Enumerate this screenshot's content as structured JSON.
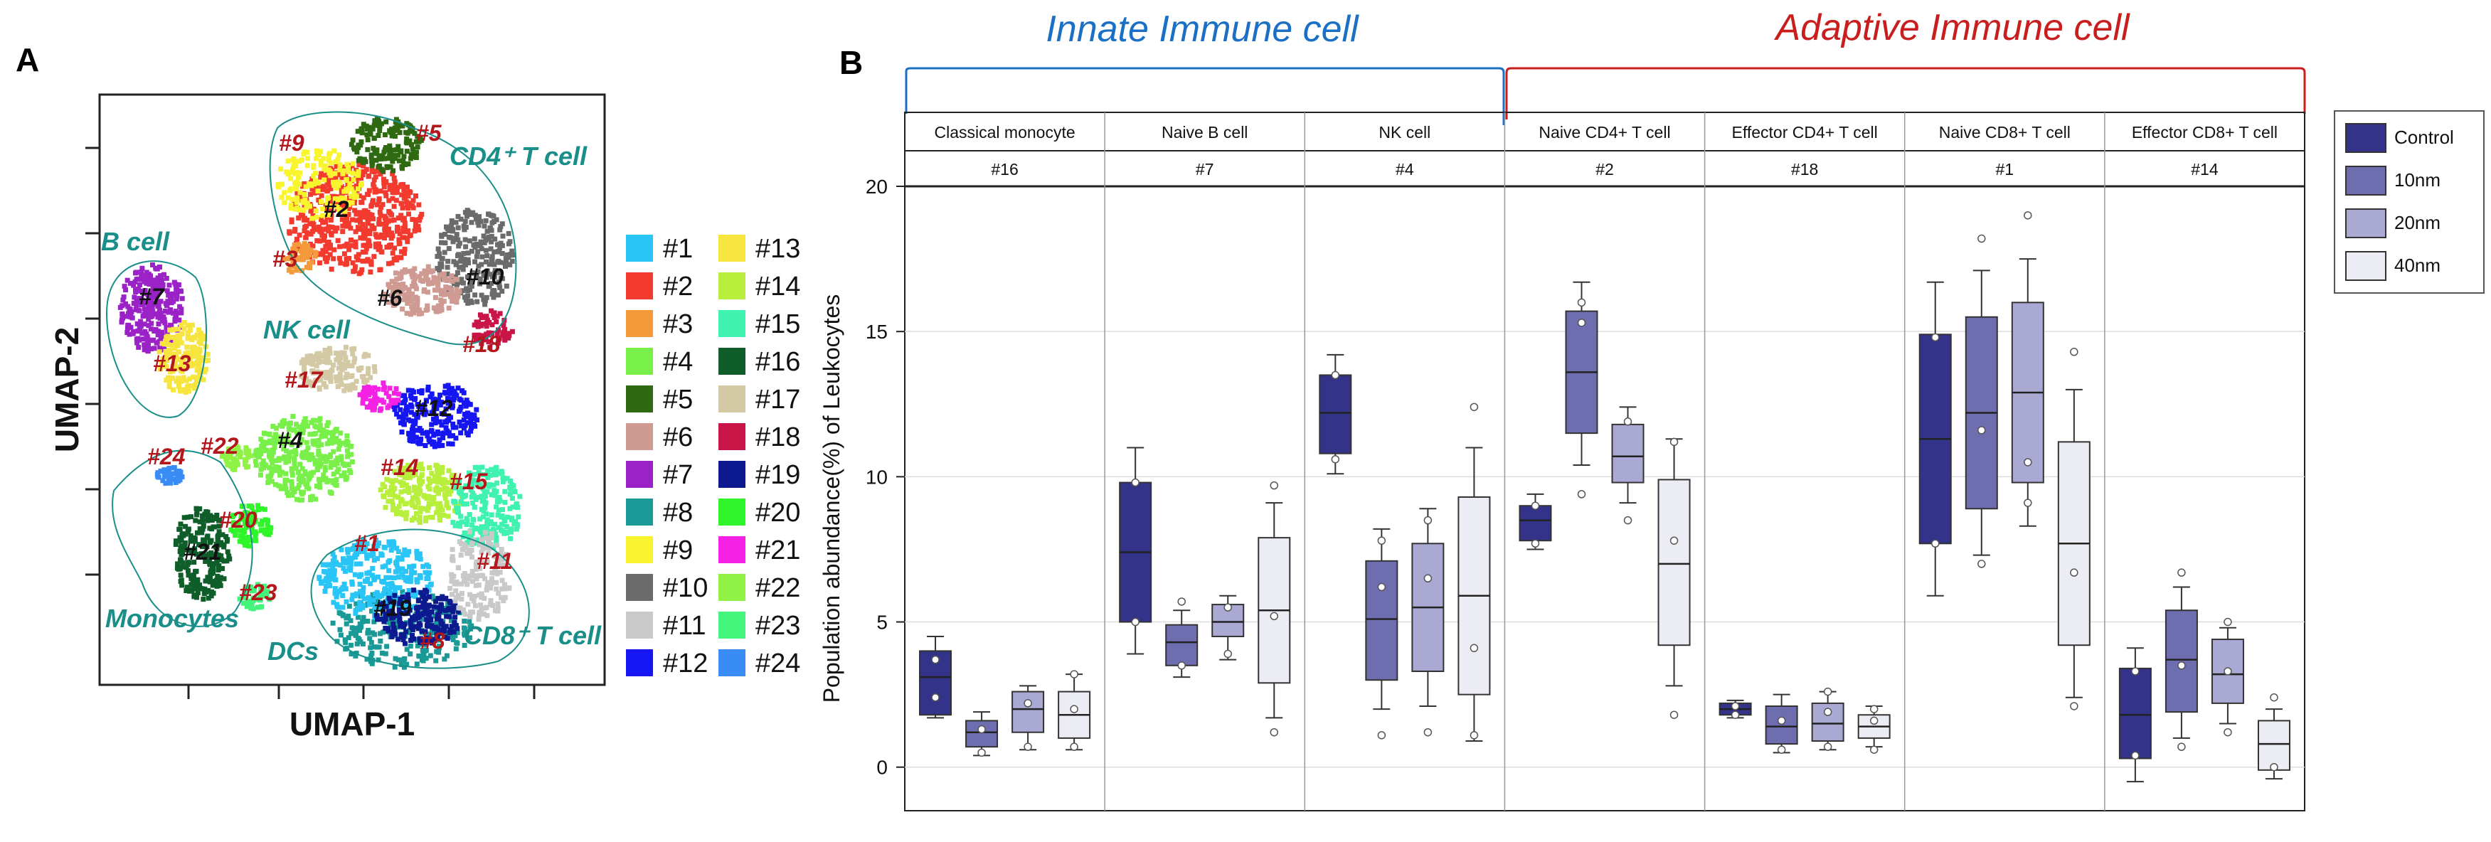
{
  "panel_a": {
    "letter": "A",
    "xlabel": "UMAP-1",
    "ylabel": "UMAP-2",
    "cell_labels": [
      "CD4⁺ T cell",
      "B cell",
      "NK cell",
      "Monocytes",
      "DCs",
      "CD8⁺ T cell"
    ],
    "cluster_labels": [
      {
        "text": "#9",
        "color": "red"
      },
      {
        "text": "#5",
        "color": "red"
      },
      {
        "text": "#2",
        "color": "black"
      },
      {
        "text": "#3",
        "color": "red"
      },
      {
        "text": "#6",
        "color": "black"
      },
      {
        "text": "#10",
        "color": "black"
      },
      {
        "text": "#18",
        "color": "red"
      },
      {
        "text": "#7",
        "color": "black"
      },
      {
        "text": "#13",
        "color": "red"
      },
      {
        "text": "#17",
        "color": "red"
      },
      {
        "text": "#12",
        "color": "black"
      },
      {
        "text": "#24",
        "color": "red"
      },
      {
        "text": "#22",
        "color": "red"
      },
      {
        "text": "#4",
        "color": "black"
      },
      {
        "text": "#14",
        "color": "red"
      },
      {
        "text": "#15",
        "color": "red"
      },
      {
        "text": "#20",
        "color": "red"
      },
      {
        "text": "#1",
        "color": "red"
      },
      {
        "text": "#11",
        "color": "red"
      },
      {
        "text": "#23",
        "color": "red"
      },
      {
        "text": "#19",
        "color": "black"
      },
      {
        "text": "#8",
        "color": "red"
      },
      {
        "text": "#21",
        "color": "black"
      }
    ],
    "legend": [
      {
        "label": "#1",
        "color": "#29c5f6"
      },
      {
        "label": "#2",
        "color": "#f23a2e"
      },
      {
        "label": "#3",
        "color": "#f59a3b"
      },
      {
        "label": "#4",
        "color": "#79f04a"
      },
      {
        "label": "#5",
        "color": "#2f6a12"
      },
      {
        "label": "#6",
        "color": "#cf9a92"
      },
      {
        "label": "#7",
        "color": "#9b22c6"
      },
      {
        "label": "#8",
        "color": "#1a9a96"
      },
      {
        "label": "#9",
        "color": "#f8f52e"
      },
      {
        "label": "#10",
        "color": "#6b6b6b"
      },
      {
        "label": "#11",
        "color": "#c9c9c9"
      },
      {
        "label": "#12",
        "color": "#1616f2"
      },
      {
        "label": "#13",
        "color": "#f7e53f"
      },
      {
        "label": "#14",
        "color": "#b8ee3c"
      },
      {
        "label": "#15",
        "color": "#3ff2b0"
      },
      {
        "label": "#16",
        "color": "#0f5e2a"
      },
      {
        "label": "#17",
        "color": "#d3c9a5"
      },
      {
        "label": "#18",
        "color": "#c81446"
      },
      {
        "label": "#19",
        "color": "#0d1a8f"
      },
      {
        "label": "#20",
        "color": "#2ff52a"
      },
      {
        "label": "#21",
        "color": "#f522e5"
      },
      {
        "label": "#22",
        "color": "#8ff244"
      },
      {
        "label": "#23",
        "color": "#43f57a"
      },
      {
        "label": "#24",
        "color": "#3a8cf5"
      }
    ]
  },
  "panel_b": {
    "letter": "B",
    "group_titles": [
      {
        "text": "Innate Immune cell",
        "color": "#1b6fc4"
      },
      {
        "text": "Adaptive Immune cell",
        "color": "#c81e1e"
      }
    ]
  },
  "chart_data": {
    "type": "box",
    "ylabel": "Population abundance(%) of Leukocytes",
    "ylim": [
      -1.5,
      20
    ],
    "yticks": [
      0,
      5,
      10,
      15,
      20
    ],
    "legend_position": "right",
    "series_colors": {
      "Control": "#33338a",
      "10nm": "#6d6daf",
      "20nm": "#a9a9d3",
      "40nm": "#ececf5"
    },
    "series_names": [
      "Control",
      "10nm",
      "20nm",
      "40nm"
    ],
    "panels": [
      {
        "name": "Classical monocyte",
        "cluster": "#16",
        "group": "Innate",
        "boxes": [
          {
            "series": "Control",
            "whisker_low": 1.7,
            "q1": 1.8,
            "median": 3.1,
            "q3": 4.0,
            "whisker_high": 4.5,
            "points": [
              2.4,
              3.7
            ]
          },
          {
            "series": "10nm",
            "whisker_low": 0.4,
            "q1": 0.7,
            "median": 1.2,
            "q3": 1.6,
            "whisker_high": 1.9,
            "points": [
              0.5,
              1.3
            ]
          },
          {
            "series": "20nm",
            "whisker_low": 0.6,
            "q1": 1.2,
            "median": 2.0,
            "q3": 2.6,
            "whisker_high": 2.8,
            "points": [
              0.7,
              2.2
            ]
          },
          {
            "series": "40nm",
            "whisker_low": 0.6,
            "q1": 1.0,
            "median": 1.8,
            "q3": 2.6,
            "whisker_high": 3.2,
            "points": [
              0.7,
              2.0,
              3.2
            ]
          }
        ]
      },
      {
        "name": "Naive B cell",
        "cluster": "#7",
        "group": "Innate",
        "boxes": [
          {
            "series": "Control",
            "whisker_low": 3.9,
            "q1": 5.0,
            "median": 7.4,
            "q3": 9.8,
            "whisker_high": 11.0,
            "points": [
              5.0,
              9.8
            ]
          },
          {
            "series": "10nm",
            "whisker_low": 3.1,
            "q1": 3.5,
            "median": 4.3,
            "q3": 4.9,
            "whisker_high": 5.4,
            "points": [
              3.5,
              5.7
            ]
          },
          {
            "series": "20nm",
            "whisker_low": 3.7,
            "q1": 4.5,
            "median": 5.0,
            "q3": 5.6,
            "whisker_high": 5.9,
            "points": [
              3.9,
              5.5
            ]
          },
          {
            "series": "40nm",
            "whisker_low": 1.7,
            "q1": 2.9,
            "median": 5.4,
            "q3": 7.9,
            "whisker_high": 9.1,
            "points": [
              1.2,
              5.2,
              9.7
            ]
          }
        ]
      },
      {
        "name": "NK cell",
        "cluster": "#4",
        "group": "Innate",
        "boxes": [
          {
            "series": "Control",
            "whisker_low": 10.1,
            "q1": 10.8,
            "median": 12.2,
            "q3": 13.5,
            "whisker_high": 14.2,
            "points": [
              10.6,
              13.5
            ]
          },
          {
            "series": "10nm",
            "whisker_low": 2.0,
            "q1": 3.0,
            "median": 5.1,
            "q3": 7.1,
            "whisker_high": 8.2,
            "points": [
              1.1,
              6.2,
              7.8
            ]
          },
          {
            "series": "20nm",
            "whisker_low": 2.1,
            "q1": 3.3,
            "median": 5.5,
            "q3": 7.7,
            "whisker_high": 8.9,
            "points": [
              1.2,
              6.5,
              8.5
            ]
          },
          {
            "series": "40nm",
            "whisker_low": 0.9,
            "q1": 2.5,
            "median": 5.9,
            "q3": 9.3,
            "whisker_high": 11.0,
            "points": [
              1.1,
              4.1,
              12.4
            ]
          }
        ]
      },
      {
        "name": "Naive CD4+ T cell",
        "cluster": "#2",
        "group": "Adaptive",
        "boxes": [
          {
            "series": "Control",
            "whisker_low": 7.5,
            "q1": 7.8,
            "median": 8.5,
            "q3": 9.0,
            "whisker_high": 9.4,
            "points": [
              7.7,
              9.0
            ]
          },
          {
            "series": "10nm",
            "whisker_low": 10.4,
            "q1": 11.5,
            "median": 13.6,
            "q3": 15.7,
            "whisker_high": 16.7,
            "points": [
              9.4,
              15.3,
              16.0
            ]
          },
          {
            "series": "20nm",
            "whisker_low": 9.1,
            "q1": 9.8,
            "median": 10.7,
            "q3": 11.8,
            "whisker_high": 12.4,
            "points": [
              8.5,
              11.9
            ]
          },
          {
            "series": "40nm",
            "whisker_low": 2.8,
            "q1": 4.2,
            "median": 7.0,
            "q3": 9.9,
            "whisker_high": 11.3,
            "points": [
              1.8,
              7.8,
              11.2
            ]
          }
        ]
      },
      {
        "name": "Effector CD4+ T cell",
        "cluster": "#18",
        "group": "Adaptive",
        "boxes": [
          {
            "series": "Control",
            "whisker_low": 1.7,
            "q1": 1.8,
            "median": 2.0,
            "q3": 2.2,
            "whisker_high": 2.3,
            "points": [
              1.8,
              2.1
            ]
          },
          {
            "series": "10nm",
            "whisker_low": 0.5,
            "q1": 0.8,
            "median": 1.4,
            "q3": 2.1,
            "whisker_high": 2.5,
            "points": [
              0.6,
              1.6
            ]
          },
          {
            "series": "20nm",
            "whisker_low": 0.6,
            "q1": 0.9,
            "median": 1.5,
            "q3": 2.2,
            "whisker_high": 2.6,
            "points": [
              0.7,
              1.9,
              2.6
            ]
          },
          {
            "series": "40nm",
            "whisker_low": 0.7,
            "q1": 1.0,
            "median": 1.4,
            "q3": 1.8,
            "whisker_high": 2.1,
            "points": [
              0.6,
              1.6,
              2.0
            ]
          }
        ]
      },
      {
        "name": "Naive CD8+ T cell",
        "cluster": "#1",
        "group": "Adaptive",
        "boxes": [
          {
            "series": "Control",
            "whisker_low": 5.9,
            "q1": 7.7,
            "median": 11.3,
            "q3": 14.9,
            "whisker_high": 16.7,
            "points": [
              7.7,
              14.8
            ]
          },
          {
            "series": "10nm",
            "whisker_low": 7.3,
            "q1": 8.9,
            "median": 12.2,
            "q3": 15.5,
            "whisker_high": 17.1,
            "points": [
              7.0,
              11.6,
              18.2
            ]
          },
          {
            "series": "20nm",
            "whisker_low": 8.3,
            "q1": 9.8,
            "median": 12.9,
            "q3": 16.0,
            "whisker_high": 17.5,
            "points": [
              9.1,
              10.5,
              19.0
            ]
          },
          {
            "series": "40nm",
            "whisker_low": 2.4,
            "q1": 4.2,
            "median": 7.7,
            "q3": 11.2,
            "whisker_high": 13.0,
            "points": [
              2.1,
              6.7,
              14.3
            ]
          }
        ]
      },
      {
        "name": "Effector CD8+ T cell",
        "cluster": "#14",
        "group": "Adaptive",
        "boxes": [
          {
            "series": "Control",
            "whisker_low": -0.5,
            "q1": 0.3,
            "median": 1.8,
            "q3": 3.4,
            "whisker_high": 4.1,
            "points": [
              0.4,
              3.3
            ]
          },
          {
            "series": "10nm",
            "whisker_low": 1.0,
            "q1": 1.9,
            "median": 3.7,
            "q3": 5.4,
            "whisker_high": 6.2,
            "points": [
              0.7,
              3.5,
              6.7
            ]
          },
          {
            "series": "20nm",
            "whisker_low": 1.5,
            "q1": 2.2,
            "median": 3.2,
            "q3": 4.4,
            "whisker_high": 4.8,
            "points": [
              1.2,
              3.3,
              5.0
            ]
          },
          {
            "series": "40nm",
            "whisker_low": -0.4,
            "q1": -0.1,
            "median": 0.8,
            "q3": 1.6,
            "whisker_high": 2.0,
            "points": [
              0.0,
              2.4
            ]
          }
        ]
      }
    ]
  }
}
